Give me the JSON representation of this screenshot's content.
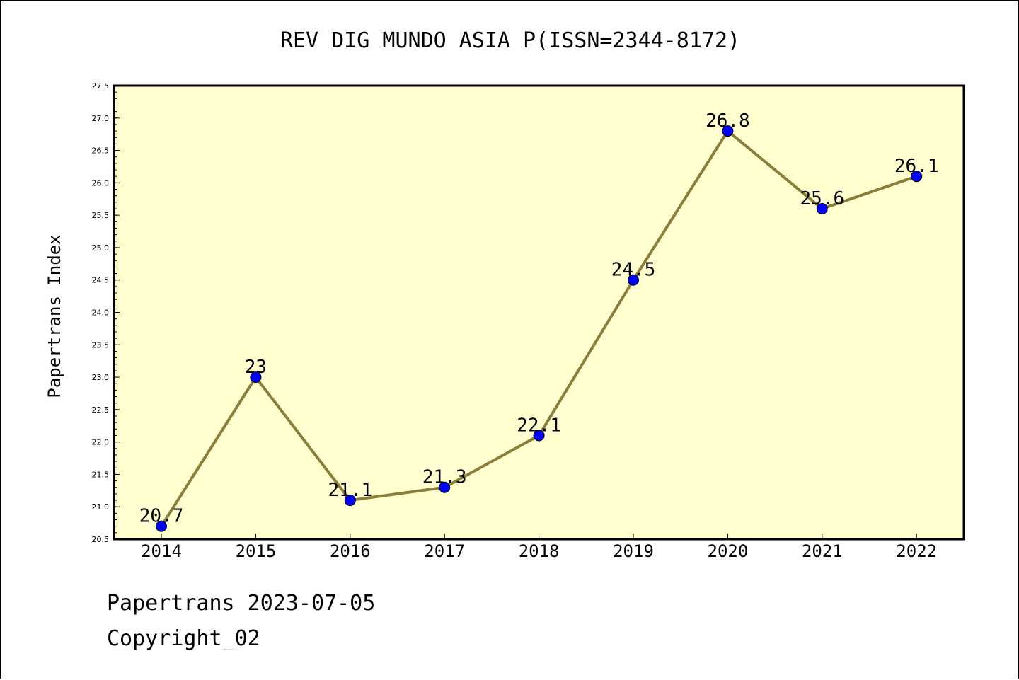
{
  "chart_data": {
    "type": "line",
    "title": "REV DIG MUNDO ASIA P(ISSN=2344-8172)",
    "xlabel": "",
    "ylabel": "Papertrans Index",
    "categories": [
      "2014",
      "2015",
      "2016",
      "2017",
      "2018",
      "2019",
      "2020",
      "2021",
      "2022"
    ],
    "series": [
      {
        "values": [
          20.7,
          23.0,
          21.1,
          21.3,
          22.1,
          24.5,
          26.8,
          25.6,
          26.1
        ],
        "labels": [
          "20.7",
          "23",
          "21.1",
          "21.3",
          "22.1",
          "24.5",
          "26.8",
          "25.6",
          "26.1"
        ]
      }
    ],
    "ylim": [
      20.5,
      27.5
    ],
    "yticks": [
      "20.5",
      "21.0",
      "21.5",
      "22.0",
      "22.5",
      "23.0",
      "23.5",
      "24.0",
      "24.5",
      "25.0",
      "25.5",
      "26.0",
      "26.5",
      "27.0",
      "27.5"
    ],
    "grid": false,
    "plot_background": "#ffffd0",
    "line_color": "#8b7d3a",
    "marker_color": "#0000ff"
  },
  "footer": {
    "source": "Papertrans 2023-07-05",
    "copyright": "Copyright_02"
  }
}
